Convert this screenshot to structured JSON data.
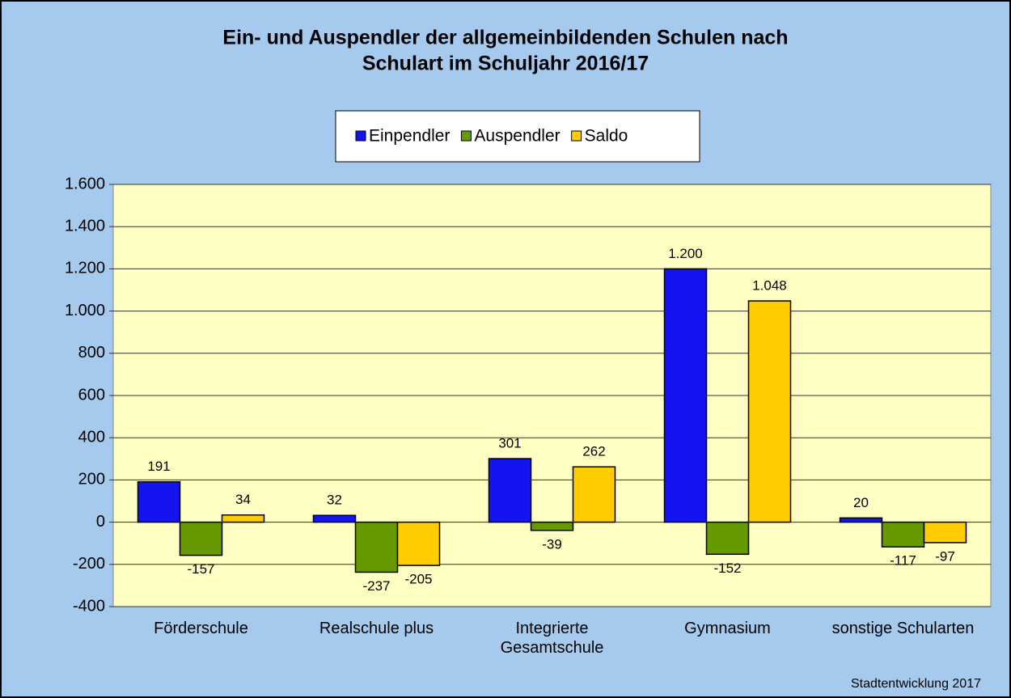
{
  "chart_data": {
    "type": "bar",
    "title": "Ein- und Auspendler der allgemeinbildenden Schulen nach",
    "subtitle": "Schulart im Schuljahr 2016/17",
    "categories": [
      "Förderschule",
      "Realschule plus",
      "Integrierte Gesamtschule",
      "Gymnasium",
      "sonstige Schularten"
    ],
    "series": [
      {
        "name": "Einpendler",
        "color": "#1414f0",
        "values": [
          191,
          32,
          301,
          1200,
          20
        ],
        "value_labels": [
          "191",
          "32",
          "301",
          "1.200",
          "20"
        ]
      },
      {
        "name": "Auspendler",
        "color": "#669900",
        "values": [
          -157,
          -237,
          -39,
          -152,
          -117
        ],
        "value_labels": [
          "-157",
          "-237",
          "-39",
          "-152",
          "-117"
        ]
      },
      {
        "name": "Saldo",
        "color": "#ffcc00",
        "values": [
          34,
          -205,
          262,
          1048,
          -97
        ],
        "value_labels": [
          "34",
          "-205",
          "262",
          "1.048",
          "-97"
        ]
      }
    ],
    "ylim": [
      -400,
      1600
    ],
    "yticks": [
      -400,
      -200,
      0,
      200,
      400,
      600,
      800,
      {
        "value": 1000,
        "label": "1.000"
      },
      {
        "value": 1200,
        "label": "1.200"
      },
      {
        "value": 1400,
        "label": "1.400"
      },
      {
        "value": 1600,
        "label": "1.600"
      }
    ],
    "grid": true,
    "legend": "top",
    "source": "Stadtentwicklung 2017"
  }
}
